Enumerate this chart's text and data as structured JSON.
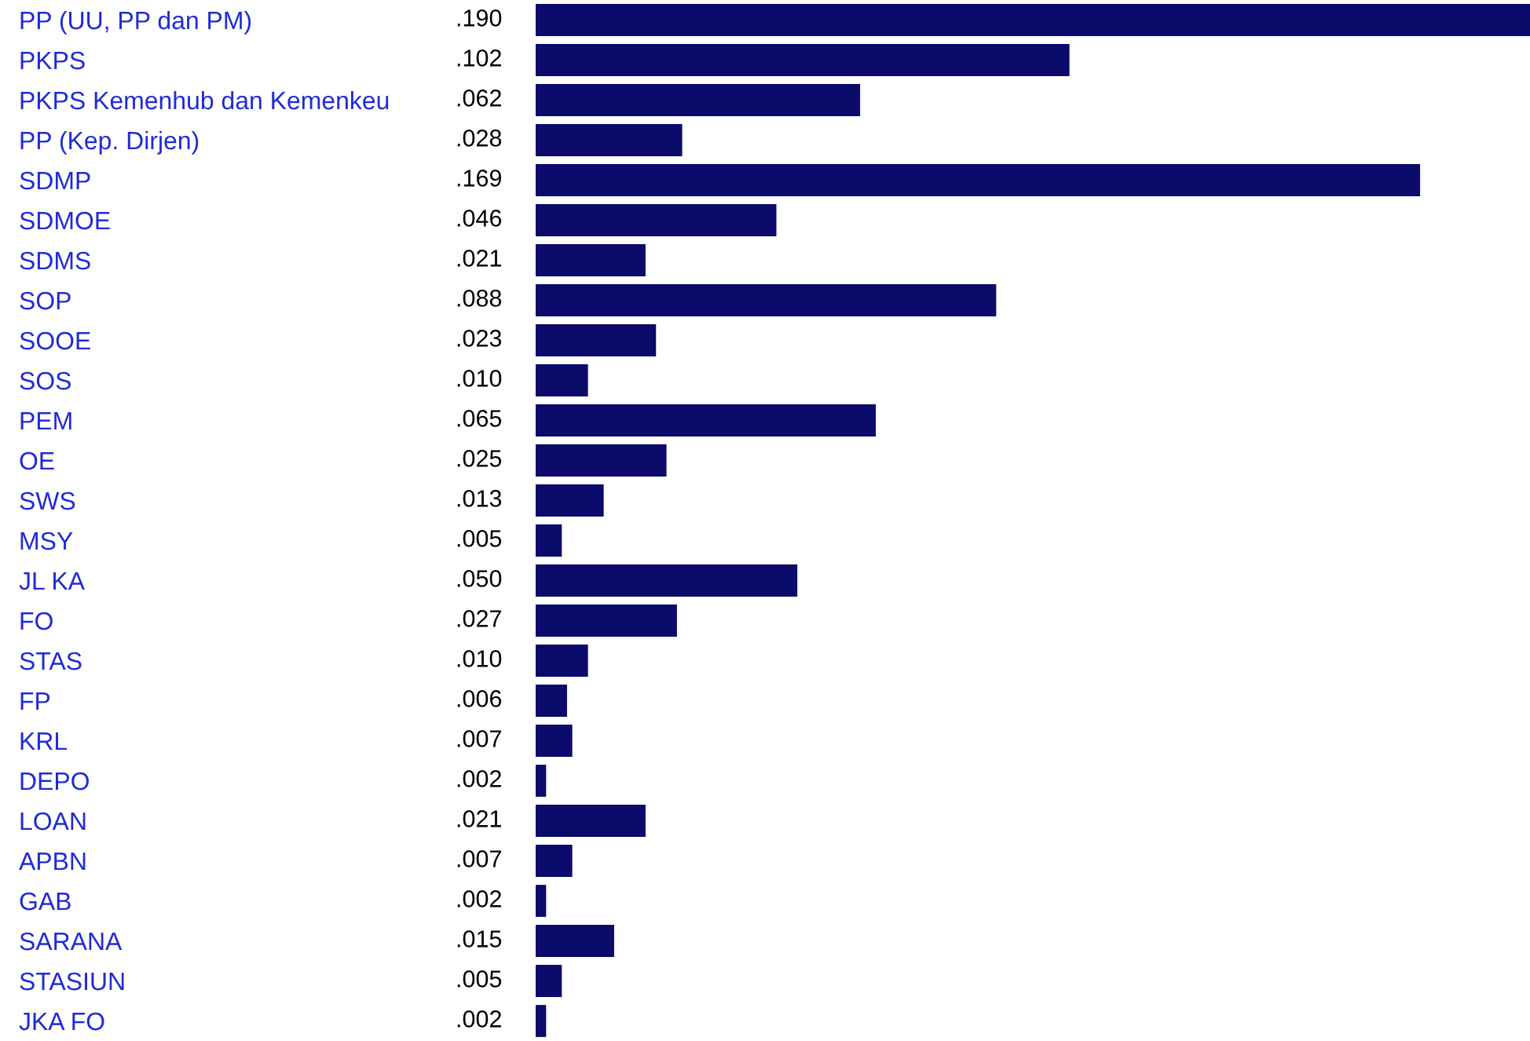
{
  "chart_data": {
    "type": "bar",
    "orientation": "horizontal",
    "categories": [
      "PP (UU, PP dan PM)",
      "PKPS",
      "PKPS Kemenhub dan Kemenkeu",
      "PP (Kep. Dirjen)",
      "SDMP",
      "SDMOE",
      "SDMS",
      "SOP",
      "SOOE",
      "SOS",
      "PEM",
      "OE",
      "SWS",
      "MSY",
      "JL KA",
      "FO",
      "STAS",
      "FP",
      "KRL",
      "DEPO",
      "LOAN",
      "APBN",
      "GAB",
      "SARANA",
      "STASIUN",
      "JKA FO"
    ],
    "values": [
      0.19,
      0.102,
      0.062,
      0.028,
      0.169,
      0.046,
      0.021,
      0.088,
      0.023,
      0.01,
      0.065,
      0.025,
      0.013,
      0.005,
      0.05,
      0.027,
      0.01,
      0.006,
      0.007,
      0.002,
      0.021,
      0.007,
      0.002,
      0.015,
      0.005,
      0.002
    ],
    "value_labels": [
      ".190",
      ".102",
      ".062",
      ".028",
      ".169",
      ".046",
      ".021",
      ".088",
      ".023",
      ".010",
      ".065",
      ".025",
      ".013",
      ".005",
      ".050",
      ".027",
      ".010",
      ".006",
      ".007",
      ".002",
      ".021",
      ".007",
      ".002",
      ".015",
      ".005",
      ".002"
    ],
    "color": "#0b0b6b",
    "grid": false,
    "legend": false
  }
}
